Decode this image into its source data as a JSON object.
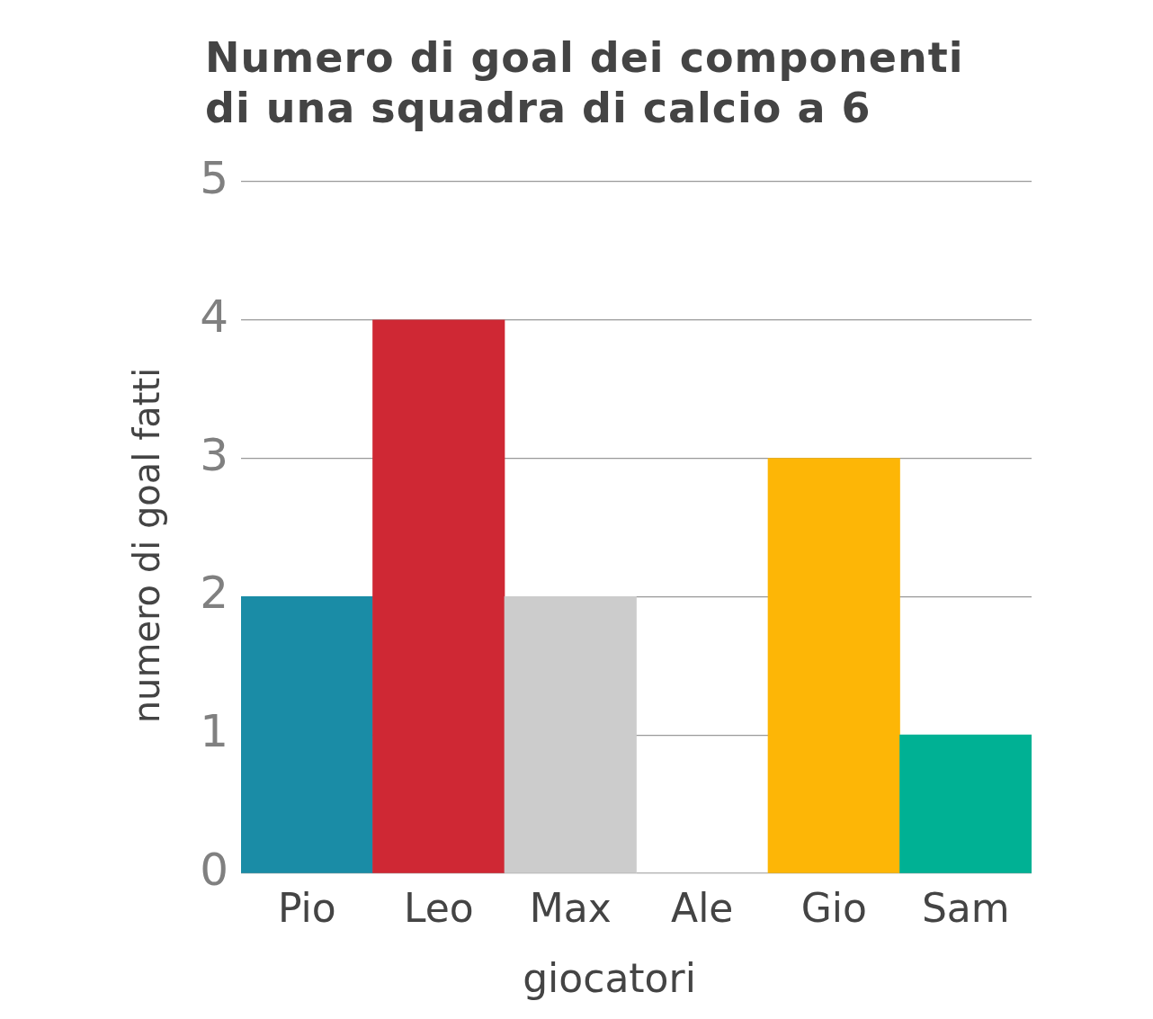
{
  "chart_data": {
    "type": "bar",
    "title": "Numero di goal dei componenti di una squadra di calcio a 6",
    "xlabel": "giocatori",
    "ylabel": "numero di goal fatti",
    "categories": [
      "Pio",
      "Leo",
      "Max",
      "Ale",
      "Gio",
      "Sam"
    ],
    "values": [
      2,
      4,
      2,
      0,
      3,
      1
    ],
    "colors": [
      "#1a8ca6",
      "#cf2834",
      "#cccccc",
      "#ffffff",
      "#fdb606",
      "#00b194"
    ],
    "ylim": [
      0,
      5
    ],
    "yticks": [
      0,
      1,
      2,
      3,
      4,
      5
    ],
    "grid": "y",
    "legend": false
  }
}
